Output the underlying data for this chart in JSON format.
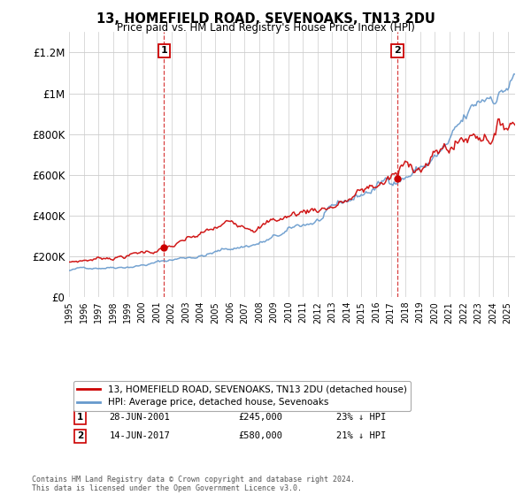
{
  "title": "13, HOMEFIELD ROAD, SEVENOAKS, TN13 2DU",
  "subtitle": "Price paid vs. HM Land Registry's House Price Index (HPI)",
  "legend_label_red": "13, HOMEFIELD ROAD, SEVENOAKS, TN13 2DU (detached house)",
  "legend_label_blue": "HPI: Average price, detached house, Sevenoaks",
  "annotation1_date": "28-JUN-2001",
  "annotation1_price": "£245,000",
  "annotation1_hpi": "23% ↓ HPI",
  "annotation2_date": "14-JUN-2017",
  "annotation2_price": "£580,000",
  "annotation2_hpi": "21% ↓ HPI",
  "footer": "Contains HM Land Registry data © Crown copyright and database right 2024.\nThis data is licensed under the Open Government Licence v3.0.",
  "ylim": [
    0,
    1300000
  ],
  "yticks": [
    0,
    200000,
    400000,
    600000,
    800000,
    1000000,
    1200000
  ],
  "ytick_labels": [
    "£0",
    "£200K",
    "£400K",
    "£600K",
    "£800K",
    "£1M",
    "£1.2M"
  ],
  "red_color": "#cc0000",
  "blue_color": "#6699cc",
  "annotation_line_color": "#cc0000",
  "background_color": "#ffffff",
  "grid_color": "#cccccc",
  "sale1_year": 2001.49,
  "sale1_price": 245000,
  "sale2_year": 2017.45,
  "sale2_price": 580000
}
